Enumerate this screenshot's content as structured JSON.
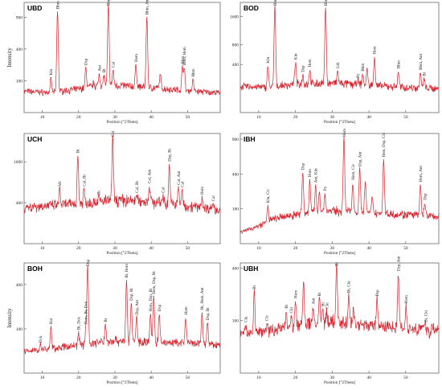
{
  "colors": {
    "line": "#d9232d",
    "frame": "#555555",
    "text": "#222222"
  },
  "chart_data": [
    {
      "type": "line",
      "panel": "UBD",
      "x_ticks": [
        10,
        20,
        30,
        40,
        50
      ],
      "y_ticks": [
        100,
        400,
        900
      ],
      "ylim": [
        0,
        1200
      ],
      "xlim": [
        5,
        59
      ],
      "xlabel": "Position [°2Theta]",
      "ylabel": "Intensity",
      "baseline": [
        [
          5,
          45
        ],
        [
          12,
          40
        ],
        [
          20,
          55
        ],
        [
          24,
          70
        ],
        [
          30,
          75
        ],
        [
          40,
          62
        ],
        [
          50,
          48
        ],
        [
          59,
          38
        ]
      ],
      "peaks": [
        [
          12.4,
          120
        ],
        [
          14.2,
          1010
        ],
        [
          22.0,
          200
        ],
        [
          24.2,
          90
        ],
        [
          25.7,
          150
        ],
        [
          27.0,
          140
        ],
        [
          28.2,
          1160
        ],
        [
          29.5,
          180
        ],
        [
          35.8,
          230
        ],
        [
          38.8,
          900
        ],
        [
          42.5,
          150
        ],
        [
          48.6,
          210
        ],
        [
          49.1,
          200
        ],
        [
          51.5,
          110
        ]
      ],
      "labels": [
        {
          "text": "Kln",
          "x": 12.4,
          "y": 120
        },
        {
          "text": "Bhm",
          "x": 14.2,
          "y": 1010
        },
        {
          "text": "Dsp",
          "x": 22.0,
          "y": 200
        },
        {
          "text": "Ant",
          "x": 25.7,
          "y": 150
        },
        {
          "text": "Bt",
          "x": 27.0,
          "y": 140
        },
        {
          "text": "Bhm",
          "x": 28.2,
          "y": 1160
        },
        {
          "text": "Cal",
          "x": 29.5,
          "y": 180
        },
        {
          "text": "Hem",
          "x": 35.8,
          "y": 230
        },
        {
          "text": "Bhm, Ant, Dsp",
          "x": 38.8,
          "y": 900
        },
        {
          "text": "Bhm",
          "x": 48.6,
          "y": 210
        },
        {
          "text": "Bhm, Hem",
          "x": 49.1,
          "y": 200
        },
        {
          "text": "Bhm",
          "x": 51.5,
          "y": 110
        }
      ]
    },
    {
      "type": "line",
      "panel": "BOD",
      "x_ticks": [
        10,
        20,
        30,
        40,
        50
      ],
      "y_ticks": [
        400,
        800,
        1600
      ],
      "ylim": [
        0,
        2100
      ],
      "xlim": [
        5,
        59
      ],
      "xlabel": "Position [°2Theta]",
      "ylabel": "",
      "baseline": [
        [
          5,
          120
        ],
        [
          12,
          110
        ],
        [
          20,
          140
        ],
        [
          30,
          150
        ],
        [
          40,
          130
        ],
        [
          50,
          110
        ],
        [
          59,
          100
        ]
      ],
      "peaks": [
        [
          12.5,
          380
        ],
        [
          14.4,
          1980
        ],
        [
          20.0,
          440
        ],
        [
          22.0,
          250
        ],
        [
          23.9,
          320
        ],
        [
          28.2,
          1880
        ],
        [
          31.5,
          300
        ],
        [
          37.0,
          180
        ],
        [
          38.3,
          260
        ],
        [
          39.5,
          330
        ],
        [
          41.5,
          540
        ],
        [
          48.0,
          300
        ],
        [
          54.0,
          280
        ],
        [
          55.0,
          200
        ]
      ],
      "labels": [
        {
          "text": "Kln",
          "x": 12.5,
          "y": 380
        },
        {
          "text": "Bhm",
          "x": 14.4,
          "y": 1980
        },
        {
          "text": "Kln",
          "x": 20.0,
          "y": 440
        },
        {
          "text": "Dsp",
          "x": 22.0,
          "y": 250
        },
        {
          "text": "Hem",
          "x": 23.9,
          "y": 320
        },
        {
          "text": "Bhm",
          "x": 28.2,
          "y": 1880
        },
        {
          "text": "Gth",
          "x": 31.5,
          "y": 300
        },
        {
          "text": "Py",
          "x": 37.0,
          "y": 180
        },
        {
          "text": "Bhm",
          "x": 38.3,
          "y": 260
        },
        {
          "text": "Hem",
          "x": 41.5,
          "y": 540
        },
        {
          "text": "Bhm",
          "x": 48.0,
          "y": 300
        },
        {
          "text": "Bhm, Ant",
          "x": 54.0,
          "y": 280
        },
        {
          "text": "Bt",
          "x": 55.0,
          "y": 200
        }
      ]
    },
    {
      "type": "line",
      "panel": "UCH",
      "x_ticks": [
        10,
        20,
        30,
        40,
        50
      ],
      "y_ticks": [
        400,
        1600
      ],
      "ylim": [
        0,
        2900
      ],
      "xlim": [
        5,
        59
      ],
      "xlabel": "Position [°2Theta]",
      "ylabel": "",
      "baseline": [
        [
          5,
          320
        ],
        [
          15,
          360
        ],
        [
          25,
          420
        ],
        [
          30,
          460
        ],
        [
          40,
          420
        ],
        [
          50,
          340
        ],
        [
          59,
          280
        ]
      ],
      "peaks": [
        [
          14.8,
          720
        ],
        [
          19.8,
          1860
        ],
        [
          21.5,
          720
        ],
        [
          25.5,
          520
        ],
        [
          29.4,
          2720
        ],
        [
          36.0,
          560
        ],
        [
          39.5,
          800
        ],
        [
          43.2,
          560
        ],
        [
          45.0,
          1520
        ],
        [
          47.5,
          760
        ],
        [
          48.5,
          700
        ],
        [
          54.0,
          520
        ],
        [
          57.0,
          380
        ]
      ],
      "labels": [
        {
          "text": "Mc",
          "x": 14.8,
          "y": 720
        },
        {
          "text": "Bt",
          "x": 19.8,
          "y": 1860
        },
        {
          "text": "Cal, Bt",
          "x": 21.5,
          "y": 720
        },
        {
          "text": "Bt",
          "x": 25.5,
          "y": 520
        },
        {
          "text": "Cal",
          "x": 29.4,
          "y": 2720
        },
        {
          "text": "Cal, Bt",
          "x": 36.0,
          "y": 560
        },
        {
          "text": "Cal, Ant",
          "x": 39.5,
          "y": 800
        },
        {
          "text": "Cal",
          "x": 43.2,
          "y": 560
        },
        {
          "text": "Dsp, Bt",
          "x": 45.0,
          "y": 1520
        },
        {
          "text": "Cal, Ant",
          "x": 47.5,
          "y": 760
        },
        {
          "text": "Cal",
          "x": 48.5,
          "y": 700
        },
        {
          "text": "Hem",
          "x": 54.0,
          "y": 520
        },
        {
          "text": "Cal",
          "x": 57.0,
          "y": 380
        }
      ]
    },
    {
      "type": "line",
      "panel": "IBH",
      "x_ticks": [
        10,
        20,
        30,
        40,
        50
      ],
      "y_ticks": [
        100,
        400,
        900
      ],
      "ylim": [
        0,
        1000
      ],
      "xlim": [
        5,
        59
      ],
      "xlabel": "Position [°2Theta]",
      "ylabel": "",
      "baseline": [
        [
          5,
          10
        ],
        [
          10,
          25
        ],
        [
          14,
          50
        ],
        [
          20,
          70
        ],
        [
          25,
          80
        ],
        [
          30,
          90
        ],
        [
          40,
          80
        ],
        [
          50,
          70
        ],
        [
          59,
          60
        ]
      ],
      "peaks": [
        [
          12.5,
          120
        ],
        [
          22.0,
          420
        ],
        [
          23.9,
          340
        ],
        [
          25.5,
          280
        ],
        [
          26.5,
          230
        ],
        [
          28.0,
          210
        ],
        [
          33.2,
          930
        ],
        [
          35.6,
          310
        ],
        [
          37.5,
          460
        ],
        [
          39.0,
          320
        ],
        [
          40.9,
          170
        ],
        [
          44.0,
          580
        ],
        [
          54.0,
          290
        ],
        [
          55.2,
          140
        ]
      ],
      "labels": [
        {
          "text": "Kln, Clc",
          "x": 12.5,
          "y": 120
        },
        {
          "text": "Dsp",
          "x": 22.0,
          "y": 420
        },
        {
          "text": "Hem",
          "x": 23.9,
          "y": 340
        },
        {
          "text": "Ant, Kln",
          "x": 25.5,
          "y": 280
        },
        {
          "text": "Py",
          "x": 28.0,
          "y": 210
        },
        {
          "text": "Hem",
          "x": 33.2,
          "y": 930
        },
        {
          "text": "Hem, Clc",
          "x": 35.6,
          "y": 310
        },
        {
          "text": "Dsp, Ant",
          "x": 37.5,
          "y": 460
        },
        {
          "text": "Hem, Dsp, Clc",
          "x": 44.0,
          "y": 580
        },
        {
          "text": "Hem, Ant",
          "x": 54.0,
          "y": 290
        },
        {
          "text": "Dsp",
          "x": 55.2,
          "y": 140
        }
      ]
    },
    {
      "type": "line",
      "panel": "BOH",
      "x_ticks": [
        10,
        20,
        30,
        40,
        50
      ],
      "y_ticks": [
        100,
        400
      ],
      "ylim": [
        0,
        620
      ],
      "xlim": [
        5,
        59
      ],
      "xlabel": "Position [°2Theta]",
      "ylabel": "Intensity",
      "baseline": [
        [
          5,
          25
        ],
        [
          12,
          30
        ],
        [
          20,
          40
        ],
        [
          30,
          55
        ],
        [
          40,
          50
        ],
        [
          50,
          45
        ],
        [
          59,
          40
        ]
      ],
      "peaks": [
        [
          9.5,
          40
        ],
        [
          12.4,
          110
        ],
        [
          20.0,
          85
        ],
        [
          22.0,
          110
        ],
        [
          22.5,
          600
        ],
        [
          27.4,
          120
        ],
        [
          33.2,
          440
        ],
        [
          34.5,
          250
        ],
        [
          36.0,
          160
        ],
        [
          39.8,
          180
        ],
        [
          40.7,
          300
        ],
        [
          42.2,
          180
        ],
        [
          49.5,
          160
        ],
        [
          54.0,
          190
        ],
        [
          55.5,
          130
        ]
      ],
      "labels": [
        {
          "text": "Dck",
          "x": 9.5,
          "y": 40
        },
        {
          "text": "Hal",
          "x": 12.4,
          "y": 110
        },
        {
          "text": "Bt, Dck",
          "x": 20.0,
          "y": 85
        },
        {
          "text": "Hem, Bt, Dck",
          "x": 22.0,
          "y": 110
        },
        {
          "text": "Dsp",
          "x": 22.5,
          "y": 600
        },
        {
          "text": "Bt",
          "x": 27.4,
          "y": 120
        },
        {
          "text": "Bt, Hem",
          "x": 33.2,
          "y": 440
        },
        {
          "text": "Dsp, Bt",
          "x": 34.5,
          "y": 250
        },
        {
          "text": "Dsp, Ant",
          "x": 36.0,
          "y": 160
        },
        {
          "text": "Hem, Dsp, Bt",
          "x": 39.8,
          "y": 180
        },
        {
          "text": "Hem, Dsp, Bt",
          "x": 40.7,
          "y": 300
        },
        {
          "text": "Dsp",
          "x": 42.2,
          "y": 180
        },
        {
          "text": "Hem",
          "x": 49.5,
          "y": 160
        },
        {
          "text": "Bt, Hem, Ant",
          "x": 54.0,
          "y": 190
        },
        {
          "text": "Dsp, Bt",
          "x": 55.5,
          "y": 130
        }
      ]
    },
    {
      "type": "line",
      "panel": "UBH",
      "x_ticks": [
        10,
        20,
        30,
        40,
        50
      ],
      "y_ticks": [
        100,
        400
      ],
      "ylim": [
        0,
        440
      ],
      "xlim": [
        5,
        59
      ],
      "xlabel": "Position [°2Theta]",
      "ylabel": "",
      "baseline": [
        [
          5,
          55
        ],
        [
          12,
          65
        ],
        [
          20,
          80
        ],
        [
          25,
          90
        ],
        [
          30,
          95
        ],
        [
          40,
          85
        ],
        [
          50,
          75
        ],
        [
          59,
          70
        ]
      ],
      "peaks": [
        [
          6.5,
          85
        ],
        [
          8.8,
          240
        ],
        [
          12.2,
          90
        ],
        [
          17.5,
          140
        ],
        [
          18.8,
          120
        ],
        [
          20.0,
          190
        ],
        [
          22.2,
          310
        ],
        [
          24.8,
          160
        ],
        [
          26.5,
          200
        ],
        [
          27.4,
          150
        ],
        [
          28.5,
          140
        ],
        [
          31.2,
          420
        ],
        [
          34.5,
          220
        ],
        [
          35.8,
          150
        ],
        [
          42.2,
          200
        ],
        [
          48.0,
          360
        ],
        [
          50.1,
          165
        ],
        [
          55.4,
          85
        ],
        [
          56.6,
          50
        ]
      ],
      "labels": [
        {
          "text": "Ckt",
          "x": 6.5,
          "y": 85
        },
        {
          "text": "Bt",
          "x": 8.8,
          "y": 240
        },
        {
          "text": "Clc",
          "x": 12.2,
          "y": 90
        },
        {
          "text": "Bt",
          "x": 17.5,
          "y": 140
        },
        {
          "text": "Ckt",
          "x": 18.8,
          "y": 120
        },
        {
          "text": "Hem",
          "x": 20.0,
          "y": 190
        },
        {
          "text": "Ant",
          "x": 24.8,
          "y": 160
        },
        {
          "text": "Bt",
          "x": 26.5,
          "y": 200
        },
        {
          "text": "Bt",
          "x": 27.4,
          "y": 150
        },
        {
          "text": "Ckt",
          "x": 28.5,
          "y": 140
        },
        {
          "text": "Bt",
          "x": 31.2,
          "y": 420
        },
        {
          "text": "Bt, Ckt",
          "x": 34.5,
          "y": 220
        },
        {
          "text": "Dsp",
          "x": 42.2,
          "y": 200
        },
        {
          "text": "Dsp, Ant",
          "x": 48.0,
          "y": 360
        },
        {
          "text": "Hem",
          "x": 50.1,
          "y": 165
        },
        {
          "text": "Bt, Ckt",
          "x": 55.4,
          "y": 85
        }
      ]
    }
  ]
}
